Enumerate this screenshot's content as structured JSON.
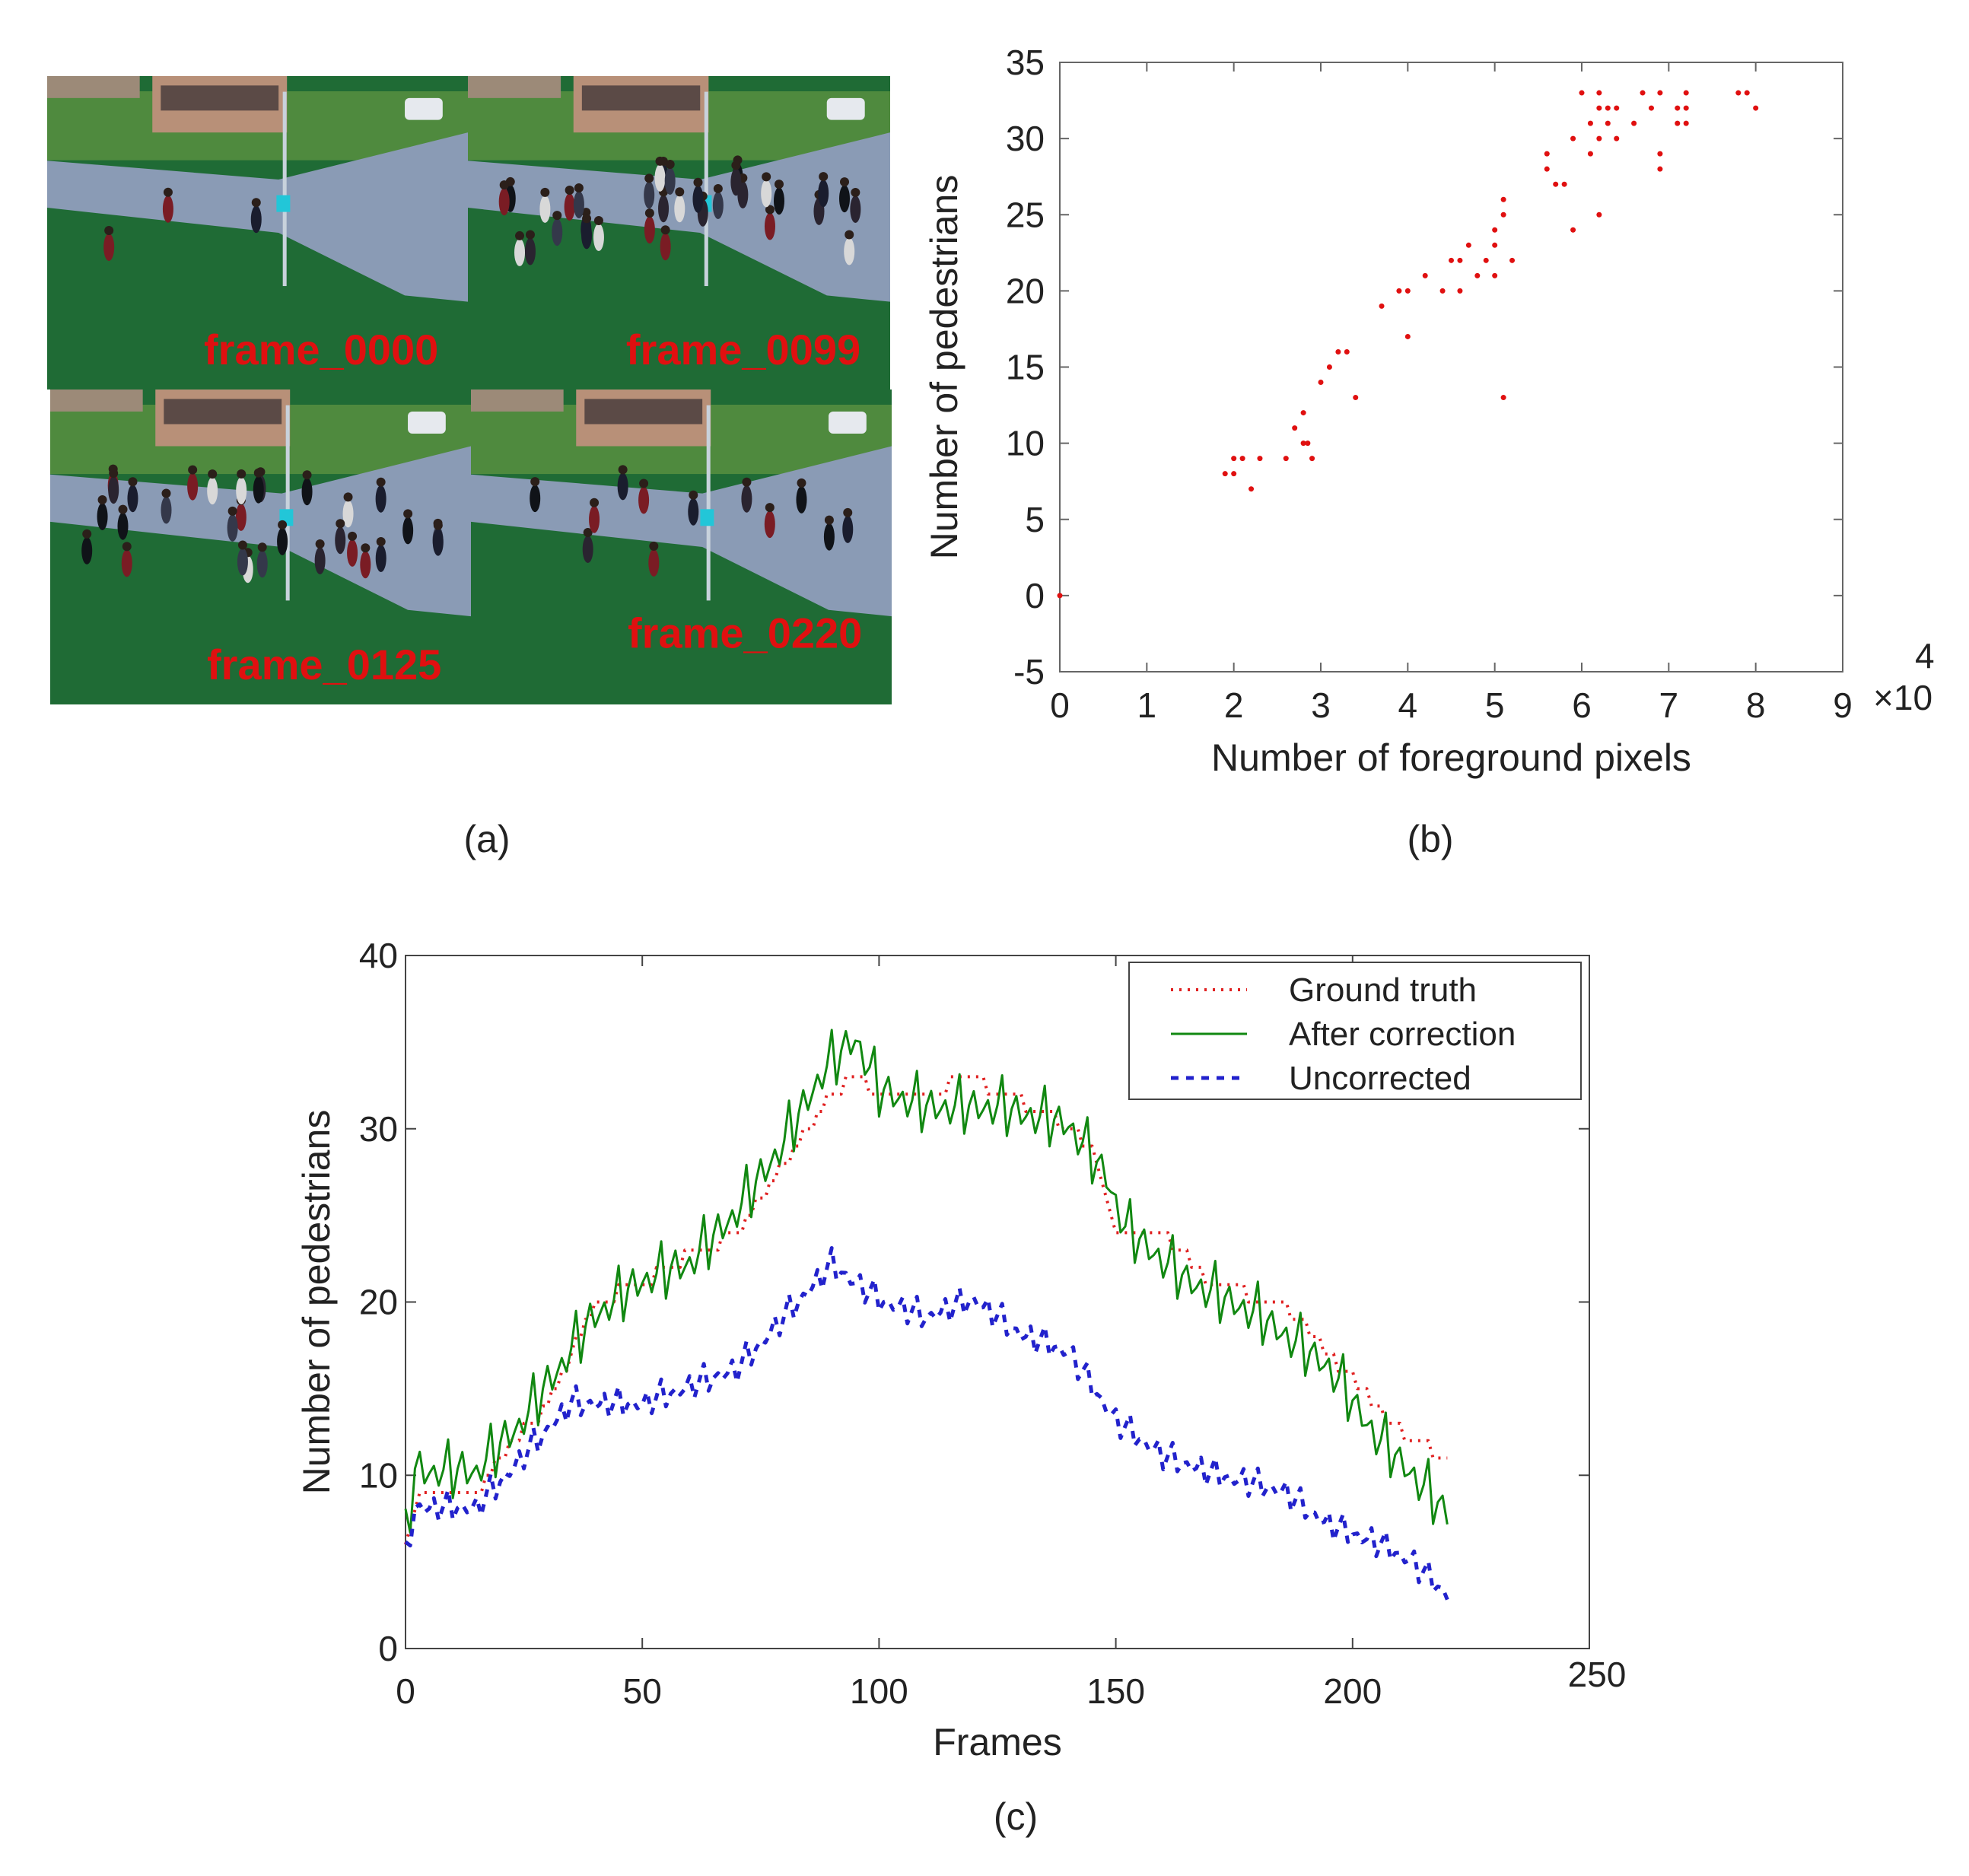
{
  "panels": {
    "a": "(a)",
    "b": "(b)",
    "c": "(c)"
  },
  "frames": [
    {
      "label": "frame_0000",
      "crowd": 3
    },
    {
      "label": "frame_0099",
      "crowd": 33
    },
    {
      "label": "frame_0125",
      "crowd": 30
    },
    {
      "label": "frame_0220",
      "crowd": 12
    }
  ],
  "colors": {
    "ground_truth": "#e02020",
    "after_correction": "#118811",
    "uncorrected": "#2222cc",
    "scatter": "#e01010",
    "grass": "#1f6b35",
    "road": "#8a9bb5",
    "building": "#b89078"
  },
  "chart_data": [
    {
      "type": "scatter",
      "id": "b",
      "title": "",
      "xlabel": "Number of foreground pixels",
      "ylabel": "Number of pedestrians",
      "xlim": [
        0,
        9
      ],
      "ylim": [
        -5,
        35
      ],
      "xticks": [
        0,
        1,
        2,
        3,
        4,
        5,
        6,
        7,
        8,
        9
      ],
      "yticks": [
        -5,
        0,
        5,
        10,
        15,
        20,
        25,
        30,
        35
      ],
      "x_exponent_base": "×10",
      "x_exponent_power": "4",
      "points": [
        [
          0,
          0
        ],
        [
          1.9,
          8
        ],
        [
          2.0,
          9
        ],
        [
          2.0,
          8
        ],
        [
          2.1,
          9
        ],
        [
          2.2,
          7
        ],
        [
          2.3,
          9
        ],
        [
          2.6,
          9
        ],
        [
          2.7,
          11
        ],
        [
          2.8,
          12
        ],
        [
          2.8,
          10
        ],
        [
          2.9,
          9
        ],
        [
          2.85,
          10
        ],
        [
          3.0,
          14
        ],
        [
          3.1,
          15
        ],
        [
          3.2,
          16
        ],
        [
          3.3,
          16
        ],
        [
          3.4,
          13
        ],
        [
          3.7,
          19
        ],
        [
          3.9,
          20
        ],
        [
          4.0,
          17
        ],
        [
          4.0,
          20
        ],
        [
          4.2,
          21
        ],
        [
          4.4,
          20
        ],
        [
          4.5,
          22
        ],
        [
          4.6,
          20
        ],
        [
          4.6,
          22
        ],
        [
          4.7,
          23
        ],
        [
          4.8,
          21
        ],
        [
          4.9,
          22
        ],
        [
          5.0,
          23
        ],
        [
          5.0,
          24
        ],
        [
          5.0,
          21
        ],
        [
          5.1,
          26
        ],
        [
          5.1,
          25
        ],
        [
          5.1,
          13
        ],
        [
          5.2,
          22
        ],
        [
          5.6,
          29
        ],
        [
          5.6,
          28
        ],
        [
          5.7,
          27
        ],
        [
          5.8,
          27
        ],
        [
          5.9,
          30
        ],
        [
          5.9,
          24
        ],
        [
          6.0,
          33
        ],
        [
          6.1,
          29
        ],
        [
          6.1,
          31
        ],
        [
          6.2,
          32
        ],
        [
          6.2,
          33
        ],
        [
          6.2,
          30
        ],
        [
          6.2,
          25
        ],
        [
          6.3,
          31
        ],
        [
          6.3,
          32
        ],
        [
          6.4,
          30
        ],
        [
          6.4,
          32
        ],
        [
          6.6,
          31
        ],
        [
          6.7,
          33
        ],
        [
          6.8,
          32
        ],
        [
          6.9,
          33
        ],
        [
          6.9,
          29
        ],
        [
          6.9,
          28
        ],
        [
          7.1,
          32
        ],
        [
          7.1,
          31
        ],
        [
          7.2,
          33
        ],
        [
          7.2,
          32
        ],
        [
          7.2,
          31
        ],
        [
          7.8,
          33
        ],
        [
          7.9,
          33
        ],
        [
          8.0,
          32
        ]
      ]
    },
    {
      "type": "line",
      "id": "c",
      "title": "",
      "xlabel": "Frames",
      "ylabel": "Number of pedestrians",
      "xlim": [
        0,
        250
      ],
      "ylim": [
        0,
        40
      ],
      "xticks": [
        0,
        50,
        100,
        150,
        200,
        250
      ],
      "yticks": [
        0,
        10,
        20,
        30,
        40
      ],
      "legend_position": "top-right",
      "series": [
        {
          "name": "Ground truth",
          "style": "dotted",
          "key": "ground_truth",
          "anchors": [
            [
              0,
              6
            ],
            [
              3,
              9
            ],
            [
              15,
              9
            ],
            [
              20,
              11
            ],
            [
              30,
              14
            ],
            [
              40,
              20
            ],
            [
              50,
              21
            ],
            [
              55,
              22
            ],
            [
              70,
              24
            ],
            [
              80,
              28
            ],
            [
              90,
              32
            ],
            [
              95,
              33
            ],
            [
              100,
              32
            ],
            [
              110,
              32
            ],
            [
              120,
              33
            ],
            [
              125,
              32
            ],
            [
              135,
              31
            ],
            [
              145,
              29
            ],
            [
              150,
              24
            ],
            [
              160,
              24
            ],
            [
              170,
              21
            ],
            [
              185,
              20
            ],
            [
              195,
              17
            ],
            [
              205,
              14
            ],
            [
              212,
              12
            ],
            [
              220,
              11
            ]
          ]
        },
        {
          "name": "After correction",
          "style": "solid",
          "key": "after_correction",
          "amplitude": 2.2,
          "anchors": [
            [
              0,
              6
            ],
            [
              2,
              10
            ],
            [
              15,
              10
            ],
            [
              25,
              13
            ],
            [
              40,
              19
            ],
            [
              50,
              21
            ],
            [
              60,
              22
            ],
            [
              70,
              25
            ],
            [
              80,
              29
            ],
            [
              88,
              33
            ],
            [
              95,
              35
            ],
            [
              100,
              32
            ],
            [
              110,
              31
            ],
            [
              125,
              31
            ],
            [
              140,
              30
            ],
            [
              148,
              27
            ],
            [
              152,
              24
            ],
            [
              165,
              21
            ],
            [
              180,
              19
            ],
            [
              195,
              16
            ],
            [
              205,
              12
            ],
            [
              212,
              10
            ],
            [
              220,
              7.5
            ]
          ]
        },
        {
          "name": "Uncorrected",
          "style": "dashed",
          "key": "uncorrected",
          "amplitude": 1.2,
          "anchors": [
            [
              0,
              5
            ],
            [
              2,
              8
            ],
            [
              15,
              8
            ],
            [
              25,
              11
            ],
            [
              35,
              14
            ],
            [
              50,
              14
            ],
            [
              60,
              15
            ],
            [
              70,
              16
            ],
            [
              80,
              19
            ],
            [
              90,
              22
            ],
            [
              100,
              20
            ],
            [
              110,
              19
            ],
            [
              120,
              20
            ],
            [
              130,
              18
            ],
            [
              140,
              17
            ],
            [
              150,
              13
            ],
            [
              160,
              11
            ],
            [
              170,
              10
            ],
            [
              185,
              9
            ],
            [
              195,
              7
            ],
            [
              205,
              6
            ],
            [
              212,
              5
            ],
            [
              220,
              3
            ]
          ]
        }
      ]
    }
  ]
}
